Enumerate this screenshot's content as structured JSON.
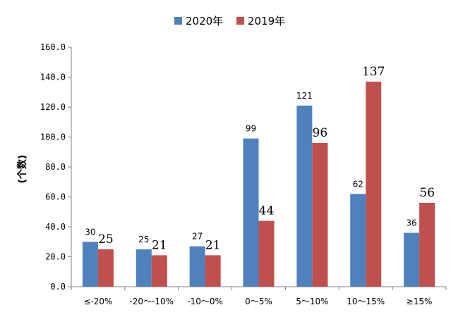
{
  "chart_data": {
    "type": "bar",
    "ylabel": "(个数)",
    "ylim": [
      0,
      160
    ],
    "yticks": [
      "0.0",
      "20.0",
      "40.0",
      "60.0",
      "80.0",
      "100.0",
      "120.0",
      "140.0",
      "160.0"
    ],
    "grid": false,
    "legend_position": "top-center",
    "categories": [
      "≤-20%",
      "-20～-10%",
      "-10～0%",
      "0～5%",
      "5～10%",
      "10～15%",
      "≥15%"
    ],
    "series": [
      {
        "name": "2020年",
        "color": "#4f81bd",
        "values": [
          30,
          25,
          27,
          99,
          121,
          62,
          36
        ]
      },
      {
        "name": "2019年",
        "color": "#c0504d",
        "values": [
          25,
          21,
          21,
          44,
          96,
          137,
          56
        ]
      }
    ]
  }
}
